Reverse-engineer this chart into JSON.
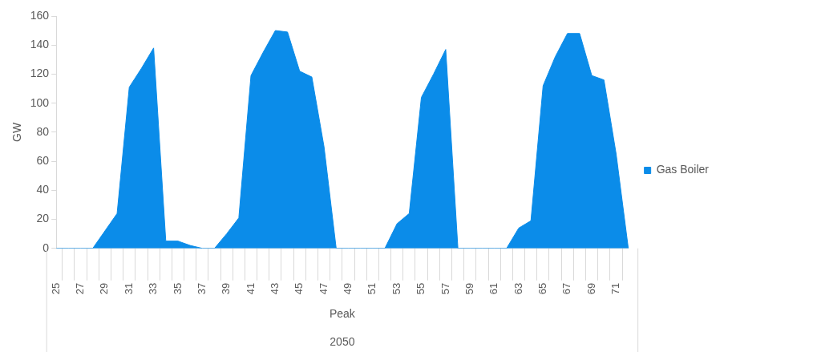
{
  "chart_data": {
    "type": "area",
    "xlabel": "Peak",
    "ylabel": "GW",
    "annotations": [
      "2050"
    ],
    "categories": [
      "25",
      null,
      "27",
      null,
      "29",
      null,
      "31",
      null,
      "33",
      null,
      "35",
      null,
      "37",
      null,
      "39",
      null,
      "41",
      null,
      "43",
      null,
      "45",
      null,
      "47",
      null,
      "49",
      null,
      "51",
      null,
      "53",
      null,
      "55",
      null,
      "57",
      null,
      "59",
      null,
      "61",
      null,
      "63",
      null,
      "65",
      null,
      "67",
      null,
      "69",
      null,
      "71",
      null
    ],
    "series": [
      {
        "name": "Gas Boiler",
        "color": "#0b8ce9",
        "values": [
          0,
          0,
          0,
          0,
          12,
          24,
          111,
          124,
          138,
          5,
          5,
          2,
          0,
          0,
          10,
          21,
          119,
          135,
          150,
          149,
          122,
          118,
          70,
          0,
          0,
          0,
          0,
          0,
          17,
          24,
          104,
          120,
          137,
          0,
          0,
          0,
          0,
          0,
          14,
          19,
          112,
          132,
          148,
          148,
          119,
          116,
          65,
          0
        ]
      }
    ],
    "ylim": [
      0,
      160
    ],
    "yticks": [
      0,
      20,
      40,
      60,
      80,
      100,
      120,
      140,
      160
    ],
    "grid": false,
    "legend": "right"
  }
}
